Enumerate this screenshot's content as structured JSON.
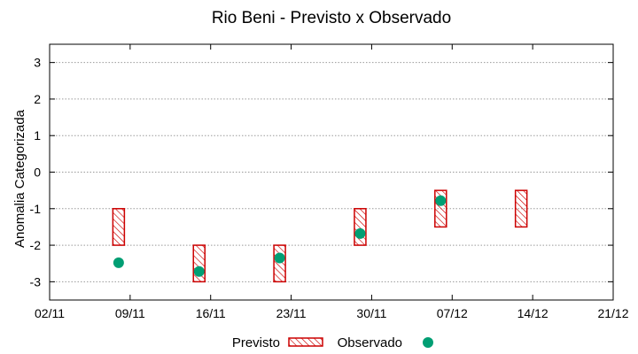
{
  "chart_data": {
    "type": "interval-scatter",
    "title": "Rio Beni - Previsto x Observado",
    "ylabel": "Anomalia Categorizada",
    "xlabel": "",
    "x_ticks": [
      "02/11",
      "09/11",
      "16/11",
      "23/11",
      "30/11",
      "07/12",
      "14/12",
      "21/12"
    ],
    "y_ticks": [
      "3",
      "2",
      "1",
      "0",
      "-1",
      "-2",
      "-3"
    ],
    "ylim": [
      -3.5,
      3.5
    ],
    "xlim": [
      "02/11",
      "21/12"
    ],
    "grid": true,
    "legend_position": "bottom",
    "series": [
      {
        "name": "Previsto",
        "style": "hatched-box",
        "color": "#cc0000",
        "points": [
          {
            "x": "08/11",
            "low": -2.0,
            "high": -1.0
          },
          {
            "x": "15/11",
            "low": -3.0,
            "high": -2.0
          },
          {
            "x": "22/11",
            "low": -3.0,
            "high": -2.0
          },
          {
            "x": "29/11",
            "low": -2.0,
            "high": -1.0
          },
          {
            "x": "06/12",
            "low": -1.5,
            "high": -0.5
          },
          {
            "x": "13/12",
            "low": -1.5,
            "high": -0.5
          }
        ]
      },
      {
        "name": "Observado",
        "style": "dot",
        "color": "#009e73",
        "points": [
          {
            "x": "08/11",
            "y": -2.48
          },
          {
            "x": "15/11",
            "y": -2.72
          },
          {
            "x": "22/11",
            "y": -2.35
          },
          {
            "x": "29/11",
            "y": -1.68
          },
          {
            "x": "06/12",
            "y": -0.78
          }
        ]
      }
    ]
  }
}
